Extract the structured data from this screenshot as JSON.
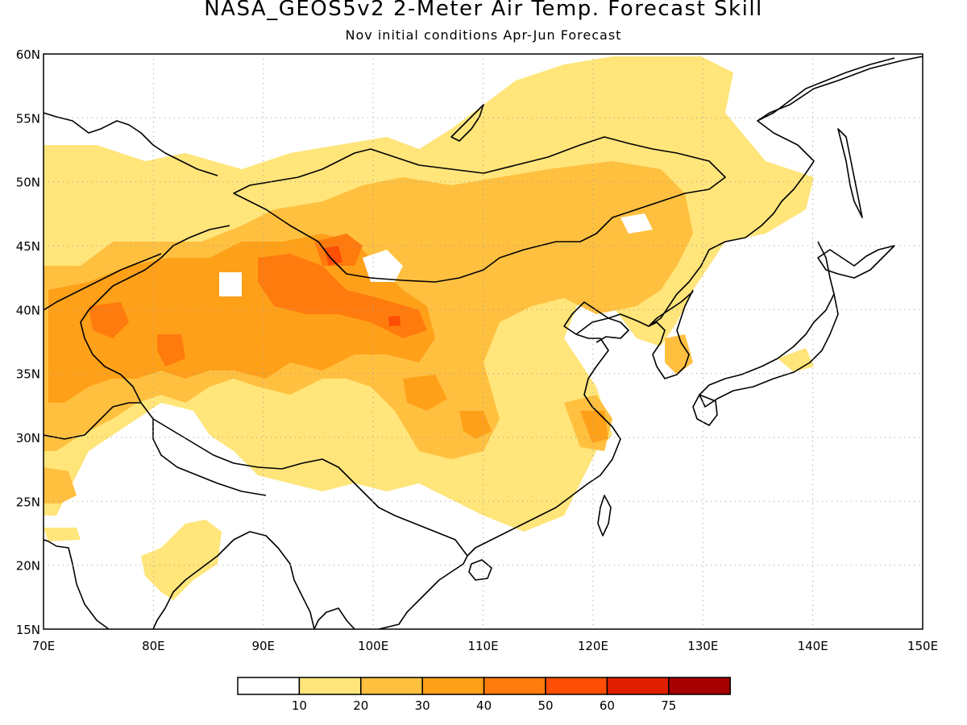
{
  "title": "NASA_GEOS5v2 2-Meter Air Temp. Forecast Skill",
  "subtitle": "Nov initial conditions  Apr-Jun Forecast",
  "map": {
    "lon_range": [
      70,
      150
    ],
    "lat_range": [
      15,
      60
    ],
    "lon_ticks": [
      "70E",
      "80E",
      "90E",
      "100E",
      "110E",
      "120E",
      "130E",
      "140E",
      "150E"
    ],
    "lat_ticks": [
      "15N",
      "20N",
      "25N",
      "30N",
      "35N",
      "40N",
      "45N",
      "50N",
      "55N",
      "60N"
    ],
    "grid": "dotted",
    "region": "East and Central Asia"
  },
  "legend": {
    "placement": "bottom-center",
    "labels": [
      "10",
      "20",
      "30",
      "40",
      "50",
      "60",
      "75"
    ],
    "colors": [
      "#ffffff",
      "#ffe57a",
      "#ffc040",
      "#ffa019",
      "#ff7b0e",
      "#ff4e05",
      "#e01e00",
      "#a60000"
    ]
  },
  "colors": {
    "level1": "#ffe57a",
    "level2": "#ffc040",
    "level3": "#ffa019",
    "level4": "#ff7b0e",
    "level5": "#ff4e05",
    "coast": "#000000"
  }
}
